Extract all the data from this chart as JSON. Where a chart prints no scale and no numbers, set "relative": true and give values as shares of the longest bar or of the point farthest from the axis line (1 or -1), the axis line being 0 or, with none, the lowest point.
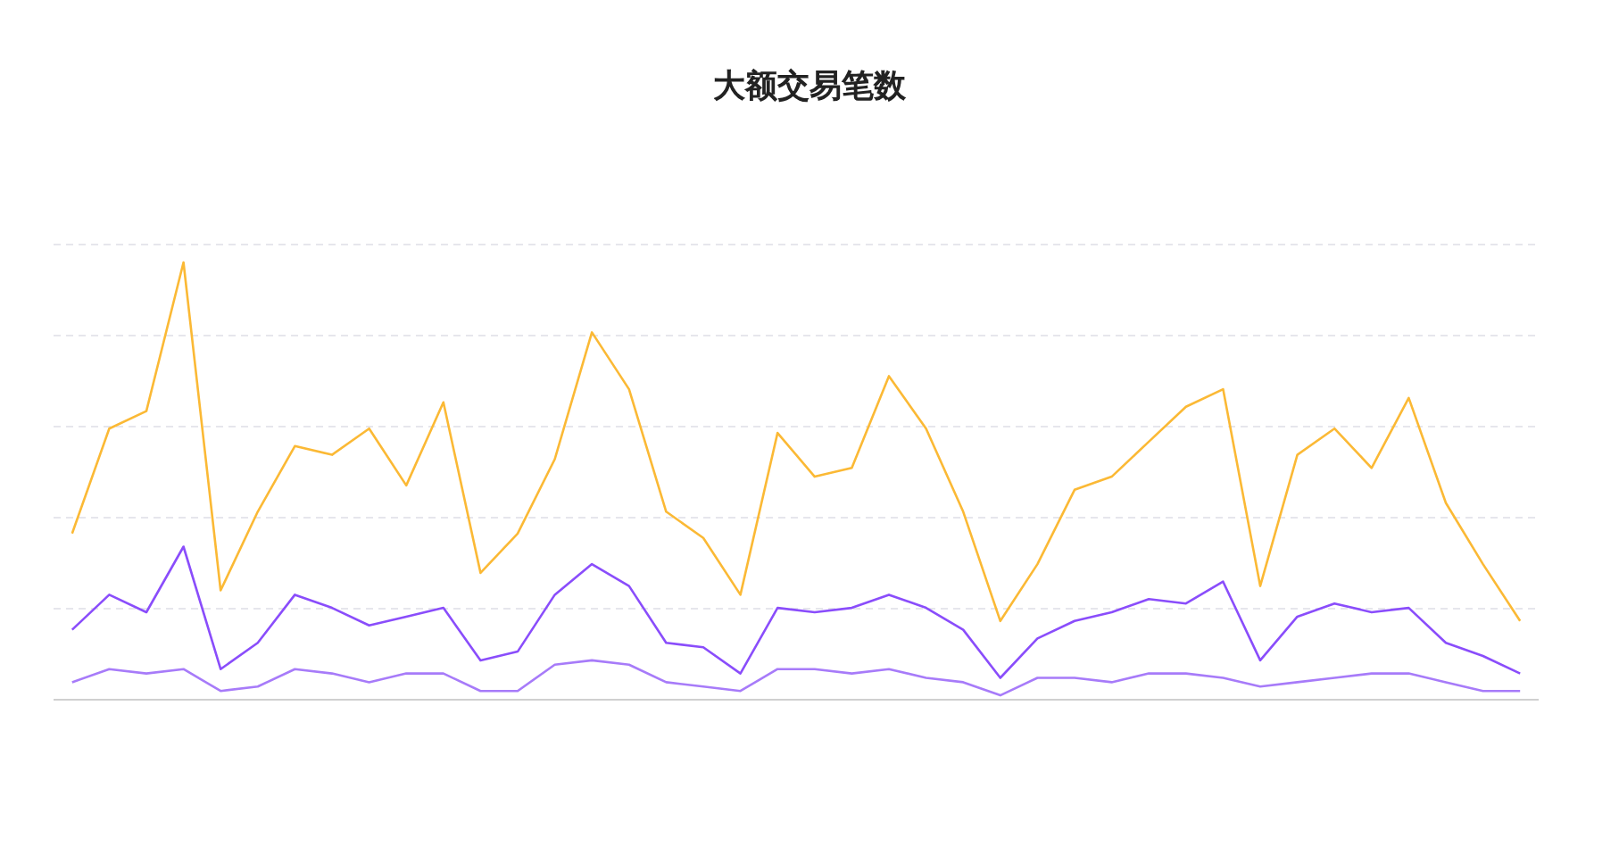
{
  "chart_data": {
    "type": "line",
    "title": "大额交易笔数",
    "relative": true,
    "grid": "y",
    "marker": "none",
    "line_style": "solid",
    "categories": [
      null,
      null,
      null,
      null,
      null,
      null,
      null,
      null,
      null,
      null,
      null,
      null,
      null,
      null,
      null,
      null,
      null,
      null,
      null,
      null,
      null,
      null,
      null,
      null,
      null,
      null,
      null,
      null,
      null,
      null,
      null,
      null,
      null,
      null,
      null,
      null,
      null,
      null,
      null,
      null
    ],
    "series": [
      {
        "color": "#fbb935",
        "values": [
          0.38,
          0.62,
          0.66,
          1.0,
          0.25,
          0.43,
          0.58,
          0.56,
          0.62,
          0.49,
          0.68,
          0.29,
          0.38,
          0.55,
          0.84,
          0.71,
          0.43,
          0.37,
          0.24,
          0.61,
          0.51,
          0.53,
          0.74,
          0.62,
          0.43,
          0.18,
          0.31,
          0.48,
          0.51,
          0.59,
          0.67,
          0.71,
          0.26,
          0.56,
          0.62,
          0.53,
          0.69,
          0.45,
          0.31,
          0.18
        ]
      },
      {
        "color": "#8a4dfb",
        "values": [
          0.16,
          0.24,
          0.2,
          0.35,
          0.07,
          0.13,
          0.24,
          0.21,
          0.17,
          0.19,
          0.21,
          0.09,
          0.11,
          0.24,
          0.31,
          0.26,
          0.13,
          0.12,
          0.06,
          0.21,
          0.2,
          0.21,
          0.24,
          0.21,
          0.16,
          0.05,
          0.14,
          0.18,
          0.2,
          0.23,
          0.22,
          0.27,
          0.09,
          0.19,
          0.22,
          0.2,
          0.21,
          0.13,
          0.1,
          0.06
        ]
      },
      {
        "color": "#a77bf9",
        "values": [
          0.04,
          0.07,
          0.06,
          0.07,
          0.02,
          0.03,
          0.07,
          0.06,
          0.04,
          0.06,
          0.06,
          0.02,
          0.02,
          0.08,
          0.09,
          0.08,
          0.04,
          0.03,
          0.02,
          0.07,
          0.07,
          0.06,
          0.07,
          0.05,
          0.04,
          0.01,
          0.05,
          0.05,
          0.04,
          0.06,
          0.06,
          0.05,
          0.03,
          0.04,
          0.05,
          0.06,
          0.06,
          0.04,
          0.02,
          0.02
        ]
      }
    ]
  }
}
